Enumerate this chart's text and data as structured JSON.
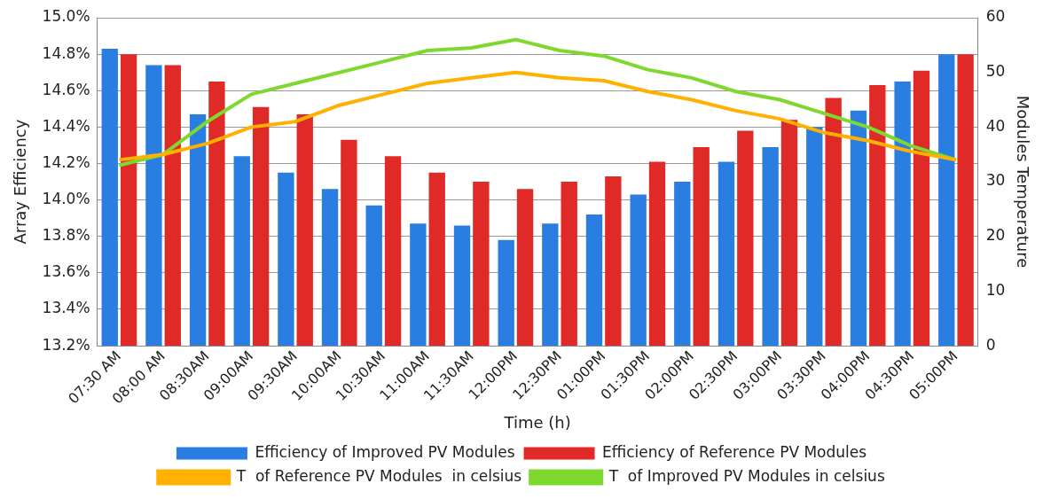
{
  "chart_data": {
    "type": "bar",
    "xlabel": "Time (h)",
    "ylabel": "Array Efficiency",
    "y2label": "Modules Temperature",
    "categories": [
      "07:30 AM",
      "08:00 AM",
      "08:30AM",
      "09:00AM",
      "09:30AM",
      "10:00AM",
      "10:30AM",
      "11:00AM",
      "11:30AM",
      "12:00PM",
      "12:30PM",
      "01:00PM",
      "01:30PM",
      "02:00PM",
      "02:30PM",
      "03:00PM",
      "03:30PM",
      "04:00PM",
      "04:30PM",
      "05:00PM"
    ],
    "series": [
      {
        "name": "Efficiency of Improved PV Modules",
        "color": "#2a7de1",
        "values": [
          14.83,
          14.74,
          14.47,
          14.24,
          14.15,
          14.06,
          13.97,
          13.87,
          13.86,
          13.78,
          13.87,
          13.92,
          14.03,
          14.1,
          14.21,
          14.29,
          14.4,
          14.49,
          14.65,
          14.8
        ]
      },
      {
        "name": "Efficiency of Reference PV Modules",
        "color": "#e02a27",
        "values": [
          14.8,
          14.74,
          14.65,
          14.51,
          14.47,
          14.33,
          14.24,
          14.15,
          14.1,
          14.06,
          14.1,
          14.13,
          14.21,
          14.29,
          14.38,
          14.44,
          14.56,
          14.63,
          14.71,
          14.8
        ]
      },
      {
        "name": "T  of Reference PV Modules  in celsius",
        "type": "line",
        "axis": "y2",
        "color": "#ffb000",
        "values": [
          34,
          35,
          37,
          40,
          41,
          44,
          46,
          48,
          49,
          50,
          49,
          48.5,
          46.5,
          45,
          43,
          41.5,
          39,
          37.5,
          35.5,
          34
        ]
      },
      {
        "name": "T  of Improved PV Modules in celsius",
        "type": "line",
        "axis": "y2",
        "color": "#7ed82e",
        "values": [
          33,
          35,
          41,
          46,
          48,
          50,
          52,
          54,
          54.5,
          56,
          54,
          53,
          50.5,
          49,
          46.5,
          45,
          42.5,
          40,
          36.5,
          34
        ]
      }
    ],
    "ylim": [
      13.2,
      15.0
    ],
    "yticks": [
      {
        "value": 13.2,
        "label": "13.2%"
      },
      {
        "value": 13.4,
        "label": "13.4%"
      },
      {
        "value": 13.6,
        "label": "13.6%"
      },
      {
        "value": 13.8,
        "label": "13.8%"
      },
      {
        "value": 14.0,
        "label": "14.0%"
      },
      {
        "value": 14.2,
        "label": "14.2%"
      },
      {
        "value": 14.4,
        "label": "14.4%"
      },
      {
        "value": 14.6,
        "label": "14.6%"
      },
      {
        "value": 14.8,
        "label": "14.8%"
      },
      {
        "value": 15.0,
        "label": "15.0%"
      }
    ],
    "y2lim": [
      0,
      60
    ],
    "y2ticks": [
      0,
      10,
      20,
      30,
      40,
      50,
      60
    ],
    "grid": "y",
    "legend": "bottom",
    "marker": "none",
    "line_style": "solid"
  }
}
